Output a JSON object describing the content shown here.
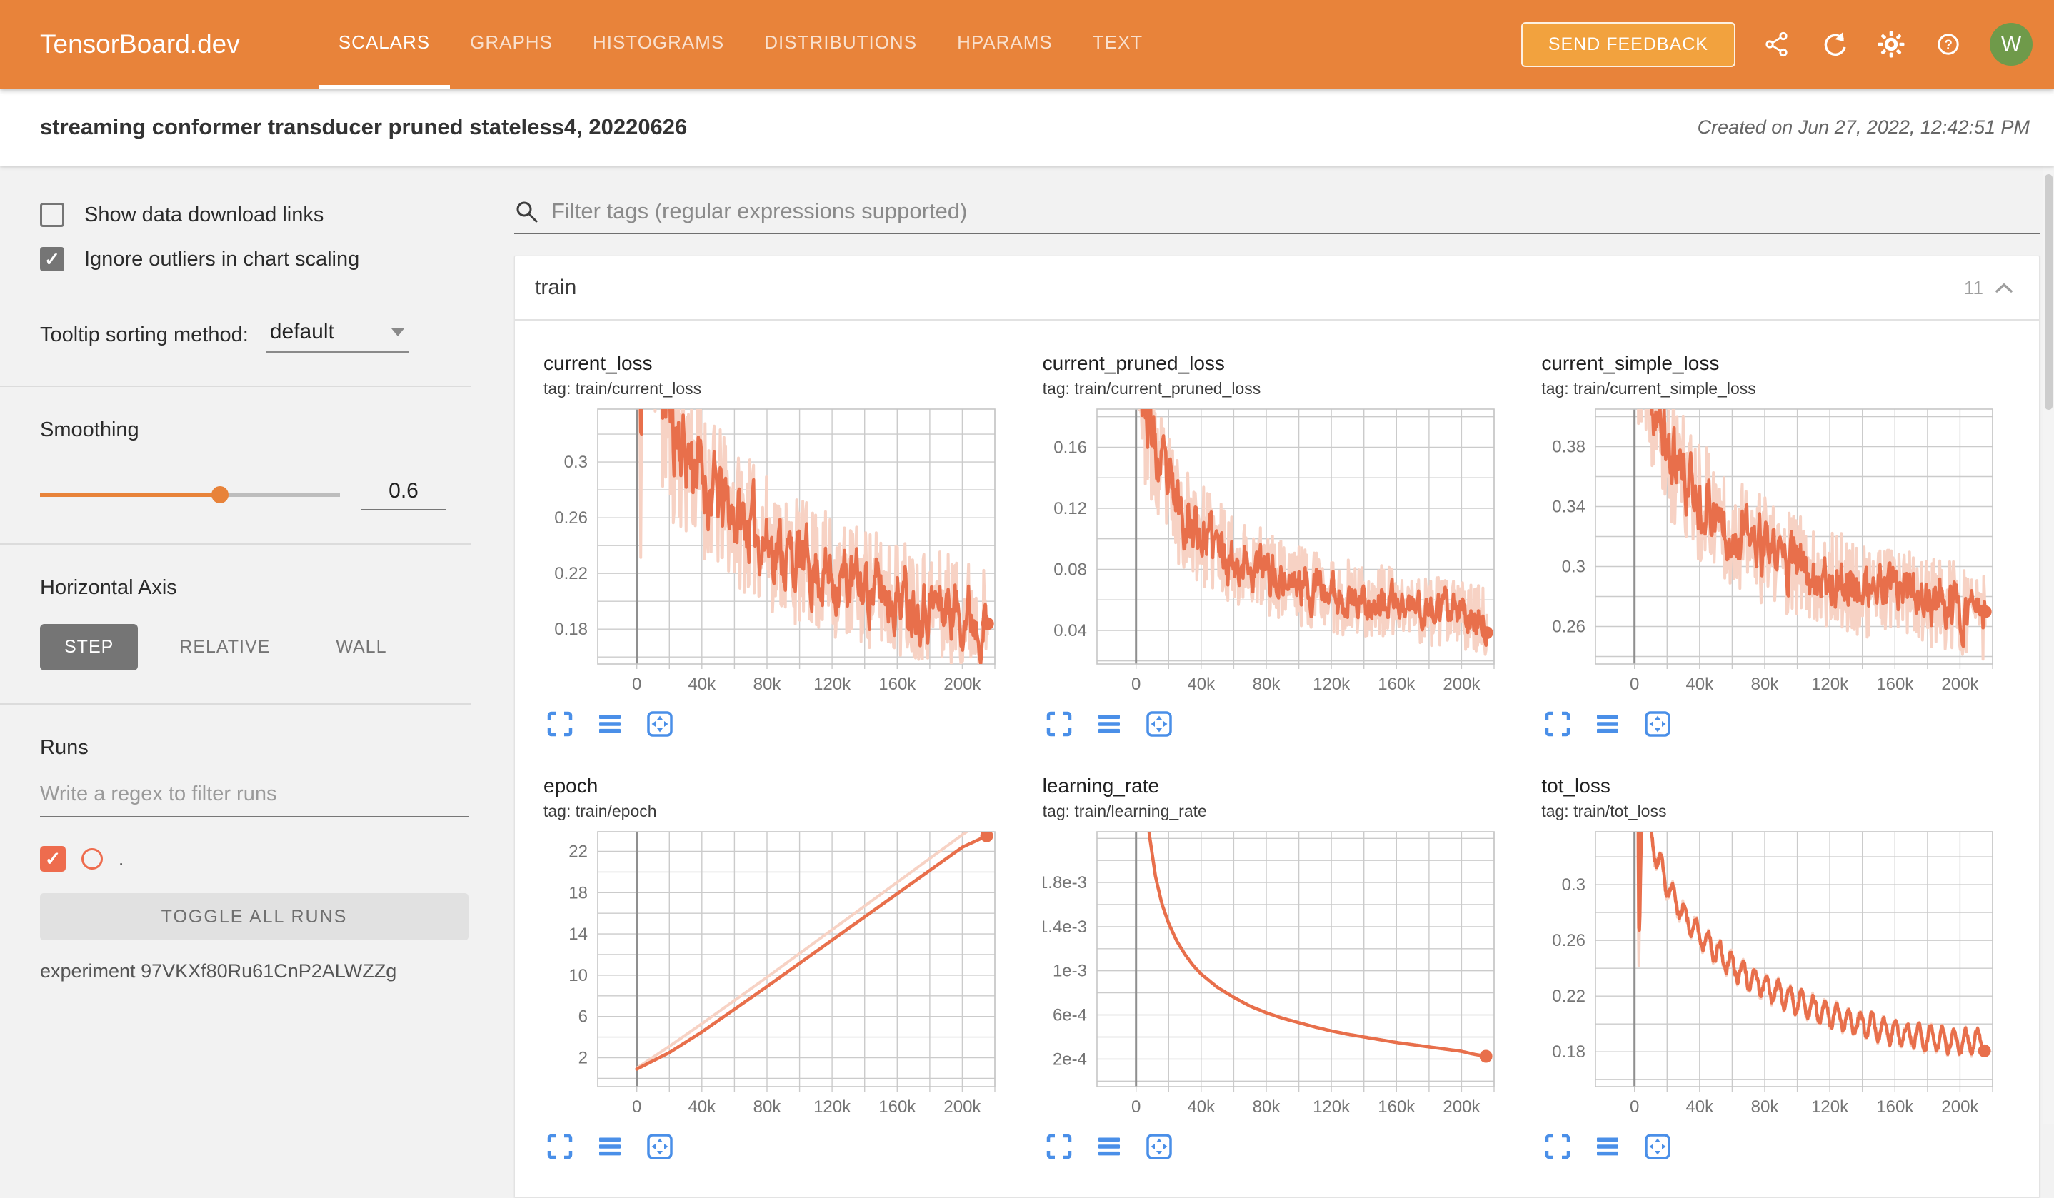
{
  "colors": {
    "header_bg": "#e8833a",
    "header_btn": "#f2a23e",
    "accent": "#e86f4b",
    "accent_light": "#f7d2c4",
    "icon_blue": "#4a8fe8",
    "avatar_green": "#6f9a4a",
    "gray": "#757575",
    "run_orange": "#ee6c4e"
  },
  "header": {
    "logo": "TensorBoard.dev",
    "tabs": [
      {
        "label": "SCALARS",
        "active": true
      },
      {
        "label": "GRAPHS",
        "active": false
      },
      {
        "label": "HISTOGRAMS",
        "active": false
      },
      {
        "label": "DISTRIBUTIONS",
        "active": false
      },
      {
        "label": "HPARAMS",
        "active": false
      },
      {
        "label": "TEXT",
        "active": false
      }
    ],
    "send_feedback": "SEND FEEDBACK",
    "icons": [
      "share",
      "refresh",
      "settings",
      "help"
    ],
    "avatar": "W"
  },
  "titlebar": {
    "title": "streaming conformer transducer pruned stateless4, 20220626",
    "created": "Created on Jun 27, 2022, 12:42:51 PM"
  },
  "sidebar": {
    "show_download": {
      "label": "Show data download links",
      "checked": false
    },
    "ignore_outliers": {
      "label": "Ignore outliers in chart scaling",
      "checked": true
    },
    "tooltip": {
      "label": "Tooltip sorting method:",
      "value": "default"
    },
    "smoothing": {
      "label": "Smoothing",
      "value": "0.6",
      "fraction": 0.6
    },
    "axis": {
      "label": "Horizontal Axis",
      "options": [
        "STEP",
        "RELATIVE",
        "WALL"
      ],
      "selected": "STEP"
    },
    "runs": {
      "label": "Runs",
      "placeholder": "Write a regex to filter runs",
      "run_name": ".",
      "run_checked": true,
      "toggle_all": "TOGGLE ALL RUNS",
      "experiment": "experiment 97VKXf80Ru61CnP2ALWZZg"
    }
  },
  "main": {
    "filter_placeholder": "Filter tags (regular expressions supported)",
    "group": {
      "name": "train",
      "count": "11"
    }
  },
  "chart_actions": [
    "fullscreen",
    "toggle-y-scale",
    "fit-data"
  ],
  "chart_data": [
    {
      "id": "current_loss",
      "type": "line",
      "title": "current_loss",
      "tag": "tag: train/current_loss",
      "x_range": [
        -24000,
        220000
      ],
      "x_grid_step": 20000,
      "x_ticks": [
        [
          0,
          "0"
        ],
        [
          40000,
          "40k"
        ],
        [
          80000,
          "80k"
        ],
        [
          120000,
          "120k"
        ],
        [
          160000,
          "160k"
        ],
        [
          200000,
          "200k"
        ]
      ],
      "y_range": [
        0.155,
        0.338
      ],
      "y_grid": {
        "start": 0.16,
        "step": 0.02
      },
      "y_ticks": [
        [
          0.18,
          "0.18"
        ],
        [
          0.22,
          "0.22"
        ],
        [
          0.26,
          "0.26"
        ],
        [
          0.3,
          "0.3"
        ]
      ],
      "data_x": [
        1500,
        215500
      ],
      "seed": 11,
      "n_points": 460,
      "smooth": 0.6,
      "end_dot": true,
      "trend": [
        [
          1500,
          0.42
        ],
        [
          2500,
          0.19
        ],
        [
          3500,
          0.46
        ],
        [
          6000,
          0.42
        ],
        [
          9000,
          0.44
        ],
        [
          12000,
          0.4
        ],
        [
          16000,
          0.36
        ],
        [
          20000,
          0.335
        ],
        [
          25000,
          0.32
        ],
        [
          30000,
          0.305
        ],
        [
          35000,
          0.3
        ],
        [
          40000,
          0.288
        ],
        [
          50000,
          0.272
        ],
        [
          60000,
          0.262
        ],
        [
          70000,
          0.252
        ],
        [
          80000,
          0.243
        ],
        [
          90000,
          0.235
        ],
        [
          100000,
          0.228
        ],
        [
          110000,
          0.222
        ],
        [
          120000,
          0.218
        ],
        [
          130000,
          0.214
        ],
        [
          140000,
          0.21
        ],
        [
          150000,
          0.207
        ],
        [
          160000,
          0.204
        ],
        [
          170000,
          0.201
        ],
        [
          180000,
          0.198
        ],
        [
          190000,
          0.196
        ],
        [
          200000,
          0.193
        ],
        [
          208000,
          0.19
        ],
        [
          215500,
          0.182
        ]
      ],
      "noise_amp": [
        [
          1500,
          0.12
        ],
        [
          15000,
          0.09
        ],
        [
          30000,
          0.06
        ],
        [
          60000,
          0.05
        ],
        [
          120000,
          0.045
        ],
        [
          215500,
          0.04
        ]
      ]
    },
    {
      "id": "current_pruned_loss",
      "type": "line",
      "title": "current_pruned_loss",
      "tag": "tag: train/current_pruned_loss",
      "x_range": [
        -24000,
        220000
      ],
      "x_grid_step": 20000,
      "x_ticks": [
        [
          0,
          "0"
        ],
        [
          40000,
          "40k"
        ],
        [
          80000,
          "80k"
        ],
        [
          120000,
          "120k"
        ],
        [
          160000,
          "160k"
        ],
        [
          200000,
          "200k"
        ]
      ],
      "y_range": [
        0.018,
        0.185
      ],
      "y_grid": {
        "start": 0.02,
        "step": 0.02
      },
      "y_ticks": [
        [
          0.04,
          "0.04"
        ],
        [
          0.08,
          "0.08"
        ],
        [
          0.12,
          "0.12"
        ],
        [
          0.16,
          "0.16"
        ]
      ],
      "data_x": [
        1500,
        215500
      ],
      "seed": 23,
      "n_points": 460,
      "smooth": 0.6,
      "end_dot": true,
      "trend": [
        [
          1500,
          0.24
        ],
        [
          3000,
          0.2
        ],
        [
          5000,
          0.185
        ],
        [
          8000,
          0.175
        ],
        [
          12000,
          0.15
        ],
        [
          16000,
          0.14
        ],
        [
          20000,
          0.13
        ],
        [
          25000,
          0.122
        ],
        [
          30000,
          0.115
        ],
        [
          40000,
          0.102
        ],
        [
          50000,
          0.094
        ],
        [
          60000,
          0.088
        ],
        [
          70000,
          0.082
        ],
        [
          80000,
          0.078
        ],
        [
          90000,
          0.074
        ],
        [
          100000,
          0.07
        ],
        [
          110000,
          0.067
        ],
        [
          120000,
          0.064
        ],
        [
          130000,
          0.062
        ],
        [
          140000,
          0.06
        ],
        [
          150000,
          0.058
        ],
        [
          160000,
          0.056
        ],
        [
          180000,
          0.053
        ],
        [
          200000,
          0.05
        ],
        [
          215500,
          0.046
        ]
      ],
      "noise_amp": [
        [
          1500,
          0.05
        ],
        [
          10000,
          0.045
        ],
        [
          30000,
          0.035
        ],
        [
          80000,
          0.028
        ],
        [
          215500,
          0.022
        ]
      ]
    },
    {
      "id": "current_simple_loss",
      "type": "line",
      "title": "current_simple_loss",
      "tag": "tag: train/current_simple_loss",
      "x_range": [
        -24000,
        220000
      ],
      "x_grid_step": 20000,
      "x_ticks": [
        [
          0,
          "0"
        ],
        [
          40000,
          "40k"
        ],
        [
          80000,
          "80k"
        ],
        [
          120000,
          "120k"
        ],
        [
          160000,
          "160k"
        ],
        [
          200000,
          "200k"
        ]
      ],
      "y_range": [
        0.235,
        0.405
      ],
      "y_grid": {
        "start": 0.24,
        "step": 0.02
      },
      "y_ticks": [
        [
          0.26,
          "0.26"
        ],
        [
          0.3,
          "0.3"
        ],
        [
          0.34,
          "0.34"
        ],
        [
          0.38,
          "0.38"
        ]
      ],
      "data_x": [
        1500,
        215500
      ],
      "seed": 37,
      "n_points": 460,
      "smooth": 0.6,
      "end_dot": true,
      "trend": [
        [
          1500,
          0.45
        ],
        [
          4000,
          0.43
        ],
        [
          8000,
          0.415
        ],
        [
          12000,
          0.4
        ],
        [
          16000,
          0.39
        ],
        [
          20000,
          0.378
        ],
        [
          25000,
          0.368
        ],
        [
          30000,
          0.358
        ],
        [
          35000,
          0.352
        ],
        [
          40000,
          0.345
        ],
        [
          50000,
          0.335
        ],
        [
          60000,
          0.325
        ],
        [
          70000,
          0.317
        ],
        [
          80000,
          0.31
        ],
        [
          90000,
          0.305
        ],
        [
          100000,
          0.3
        ],
        [
          110000,
          0.296
        ],
        [
          120000,
          0.292
        ],
        [
          130000,
          0.289
        ],
        [
          140000,
          0.286
        ],
        [
          150000,
          0.283
        ],
        [
          160000,
          0.281
        ],
        [
          170000,
          0.279
        ],
        [
          180000,
          0.277
        ],
        [
          190000,
          0.274
        ],
        [
          200000,
          0.272
        ],
        [
          215500,
          0.266
        ]
      ],
      "noise_amp": [
        [
          1500,
          0.05
        ],
        [
          20000,
          0.045
        ],
        [
          60000,
          0.038
        ],
        [
          120000,
          0.033
        ],
        [
          215500,
          0.03
        ]
      ]
    },
    {
      "id": "epoch",
      "type": "line",
      "title": "epoch",
      "tag": "tag: train/epoch",
      "x_range": [
        -24000,
        220000
      ],
      "x_grid_step": 20000,
      "x_ticks": [
        [
          0,
          "0"
        ],
        [
          40000,
          "40k"
        ],
        [
          80000,
          "80k"
        ],
        [
          120000,
          "120k"
        ],
        [
          160000,
          "160k"
        ],
        [
          200000,
          "200k"
        ]
      ],
      "y_range": [
        -0.8,
        23.9
      ],
      "y_grid": {
        "start": 0,
        "step": 2
      },
      "y_ticks": [
        [
          2,
          "2"
        ],
        [
          6,
          "6"
        ],
        [
          10,
          "10"
        ],
        [
          14,
          "14"
        ],
        [
          18,
          "18"
        ],
        [
          22,
          "22"
        ]
      ],
      "end_dot": true,
      "series": [
        {
          "name": "raw",
          "style": "raw",
          "points": [
            [
              0,
              1.0
            ],
            [
              20000,
              3.1
            ],
            [
              40000,
              5.3
            ],
            [
              80000,
              9.8
            ],
            [
              120000,
              14.4
            ],
            [
              160000,
              19.0
            ],
            [
              200000,
              23.6
            ],
            [
              212000,
              24.9
            ]
          ]
        },
        {
          "name": "smoothed",
          "style": "smoothed",
          "points": [
            [
              0,
              0.9
            ],
            [
              20000,
              2.5
            ],
            [
              40000,
              4.5
            ],
            [
              80000,
              8.9
            ],
            [
              120000,
              13.4
            ],
            [
              160000,
              17.9
            ],
            [
              200000,
              22.4
            ],
            [
              215000,
              23.5
            ]
          ]
        }
      ]
    },
    {
      "id": "learning_rate",
      "type": "line",
      "title": "learning_rate",
      "tag": "tag: train/learning_rate",
      "x_range": [
        -24000,
        220000
      ],
      "x_grid_step": 20000,
      "x_ticks": [
        [
          0,
          "0"
        ],
        [
          40000,
          "40k"
        ],
        [
          80000,
          "80k"
        ],
        [
          120000,
          "120k"
        ],
        [
          160000,
          "160k"
        ],
        [
          200000,
          "200k"
        ]
      ],
      "y_range": [
        -5e-05,
        0.00226
      ],
      "y_grid": {
        "start": 0,
        "step": 0.0002
      },
      "y_ticks": [
        [
          0.0002,
          "2e-4"
        ],
        [
          0.0006,
          "6e-4"
        ],
        [
          0.001,
          "1e-3"
        ],
        [
          0.0014,
          "1.4e-3"
        ],
        [
          0.0018,
          "1.8e-3"
        ]
      ],
      "data_x": [
        4000,
        215000
      ],
      "seed": 5,
      "n_points": 240,
      "single": true,
      "noise_amp": 0,
      "end_dot": true,
      "trend": [
        [
          4000,
          0.0029
        ],
        [
          8000,
          0.00225
        ],
        [
          12000,
          0.00185
        ],
        [
          16000,
          0.0016
        ],
        [
          20000,
          0.00143
        ],
        [
          25000,
          0.00127
        ],
        [
          30000,
          0.00115
        ],
        [
          35000,
          0.00105
        ],
        [
          40000,
          0.00097
        ],
        [
          50000,
          0.00085
        ],
        [
          60000,
          0.00076
        ],
        [
          70000,
          0.00068
        ],
        [
          80000,
          0.00062
        ],
        [
          90000,
          0.00057
        ],
        [
          100000,
          0.00053
        ],
        [
          110000,
          0.00049
        ],
        [
          120000,
          0.000455
        ],
        [
          130000,
          0.000425
        ],
        [
          140000,
          0.0004
        ],
        [
          150000,
          0.000375
        ],
        [
          160000,
          0.00035
        ],
        [
          170000,
          0.00033
        ],
        [
          180000,
          0.00031
        ],
        [
          190000,
          0.00029
        ],
        [
          200000,
          0.00027
        ],
        [
          207000,
          0.000245
        ],
        [
          215000,
          0.000225
        ]
      ]
    },
    {
      "id": "tot_loss",
      "type": "line",
      "title": "tot_loss",
      "tag": "tag: train/tot_loss",
      "x_range": [
        -24000,
        220000
      ],
      "x_grid_step": 20000,
      "x_ticks": [
        [
          0,
          "0"
        ],
        [
          40000,
          "40k"
        ],
        [
          80000,
          "80k"
        ],
        [
          120000,
          "120k"
        ],
        [
          160000,
          "160k"
        ],
        [
          200000,
          "200k"
        ]
      ],
      "y_range": [
        0.155,
        0.338
      ],
      "y_grid": {
        "start": 0.16,
        "step": 0.02
      },
      "y_ticks": [
        [
          0.18,
          "0.18"
        ],
        [
          0.22,
          "0.22"
        ],
        [
          0.26,
          "0.26"
        ],
        [
          0.3,
          "0.3"
        ]
      ],
      "data_x": [
        1500,
        215000
      ],
      "seed": 53,
      "n_points": 720,
      "smooth": 0.35,
      "end_dot": true,
      "wiggle": {
        "amp": 0.0082,
        "period": 7200
      },
      "trend": [
        [
          1500,
          0.55
        ],
        [
          2500,
          0.225
        ],
        [
          4000,
          0.34
        ],
        [
          6000,
          0.365
        ],
        [
          9000,
          0.345
        ],
        [
          12000,
          0.325
        ],
        [
          15000,
          0.315
        ],
        [
          20000,
          0.3
        ],
        [
          25000,
          0.289
        ],
        [
          30000,
          0.279
        ],
        [
          40000,
          0.264
        ],
        [
          50000,
          0.252
        ],
        [
          60000,
          0.242
        ],
        [
          70000,
          0.234
        ],
        [
          80000,
          0.227
        ],
        [
          90000,
          0.221
        ],
        [
          100000,
          0.216
        ],
        [
          110000,
          0.211
        ],
        [
          120000,
          0.207
        ],
        [
          130000,
          0.203
        ],
        [
          140000,
          0.2
        ],
        [
          150000,
          0.197
        ],
        [
          160000,
          0.194
        ],
        [
          170000,
          0.192
        ],
        [
          180000,
          0.19
        ],
        [
          190000,
          0.1885
        ],
        [
          200000,
          0.187
        ],
        [
          215000,
          0.189
        ]
      ],
      "noise_amp": [
        [
          1500,
          0.004
        ],
        [
          215000,
          0.003
        ]
      ]
    }
  ]
}
